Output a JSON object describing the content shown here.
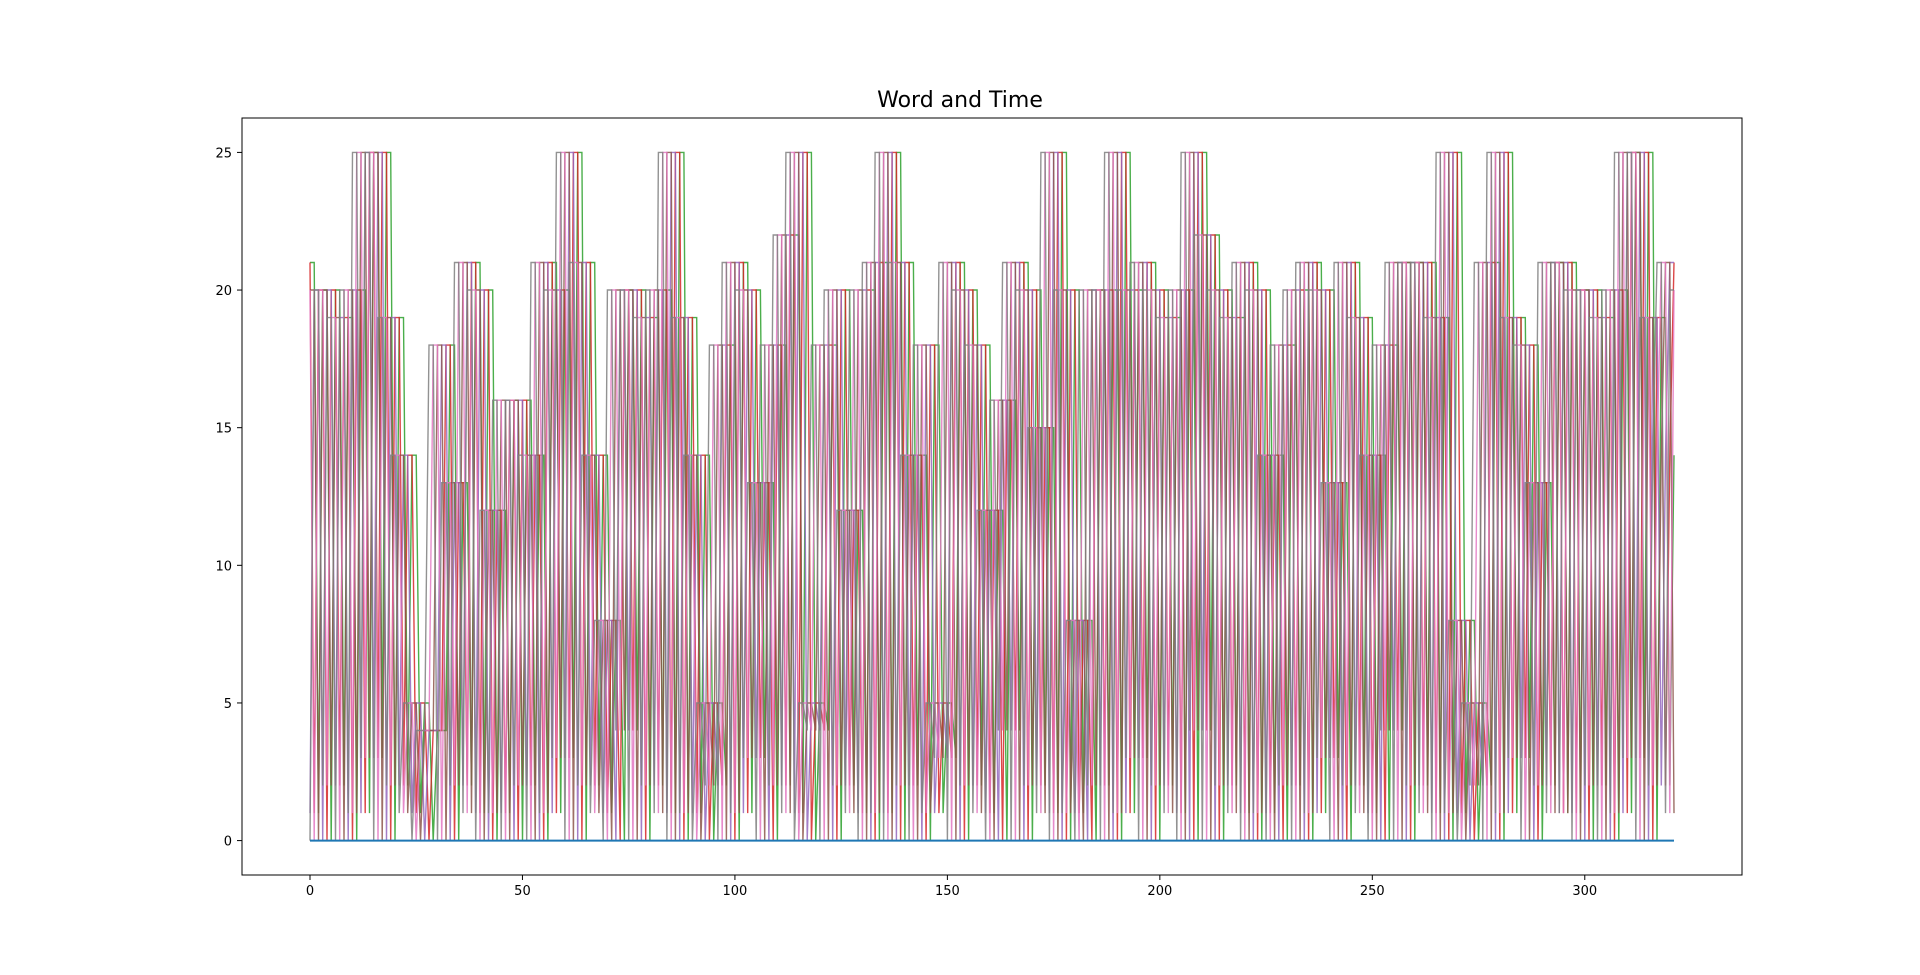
{
  "chart_data": {
    "type": "line",
    "title": "Word and Time",
    "xlabel": "",
    "ylabel": "",
    "xlim": [
      -16,
      337
    ],
    "ylim": [
      -1.25,
      26.25
    ],
    "x_ticks": [
      0,
      50,
      100,
      150,
      200,
      250,
      300
    ],
    "y_ticks": [
      0,
      5,
      10,
      15,
      20,
      25
    ],
    "grid": false,
    "legend": "none",
    "n_points": 322,
    "word_values": [
      21,
      20,
      20,
      19,
      20,
      25,
      25,
      19,
      14,
      5,
      4,
      18,
      13,
      21,
      20,
      12,
      16,
      16,
      14,
      21,
      20,
      25,
      21,
      14,
      8,
      20,
      20,
      19,
      20,
      25,
      19,
      14,
      5,
      18,
      21,
      20,
      13,
      18,
      22,
      25,
      5,
      18,
      20,
      12,
      20,
      21,
      25,
      21,
      14,
      18,
      5,
      21,
      20,
      18,
      12,
      16,
      21,
      20,
      15,
      25,
      20,
      8,
      20,
      20,
      25,
      20,
      21,
      20,
      19,
      20,
      25,
      22,
      20,
      19,
      21,
      20,
      14,
      18,
      20,
      21,
      20,
      13,
      21,
      19,
      14,
      18,
      21,
      21,
      21,
      19,
      25,
      8,
      5,
      21,
      25,
      19,
      18,
      13,
      21
    ],
    "series": [
      {
        "color": "#2ca02c",
        "shift": 0
      },
      {
        "color": "#d62728",
        "shift": 1
      },
      {
        "color": "#9467bd",
        "shift": 2
      },
      {
        "color": "#8c564b",
        "shift": 3
      },
      {
        "color": "#e377c2",
        "shift": 4
      },
      {
        "color": "#7f7f7f",
        "shift": 5
      },
      {
        "color": "#1f77b4",
        "constant": 0
      }
    ]
  }
}
